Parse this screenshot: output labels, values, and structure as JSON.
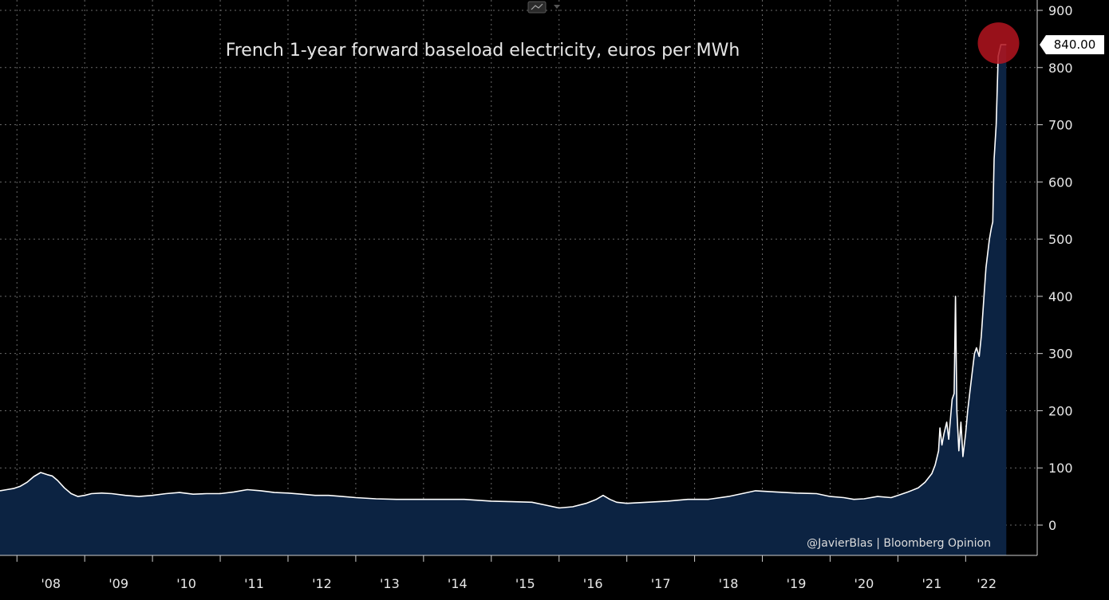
{
  "chart_data": {
    "type": "area",
    "title": "French 1-year forward baseload electricity, euros per MWh",
    "credit": "@JavierBlas | Bloomberg Opinion",
    "last_value_label": "840.00",
    "xlabel": "",
    "ylabel": "",
    "ylim": [
      -50,
      900
    ],
    "yticks": [
      0,
      100,
      200,
      300,
      400,
      500,
      600,
      700,
      800,
      900
    ],
    "xlim": [
      2007.75,
      2022.62
    ],
    "xtick_labels": [
      "'08",
      "'09",
      "'10",
      "'11",
      "'12",
      "'13",
      "'14",
      "'15",
      "'16",
      "'17",
      "'18",
      "'19",
      "'20",
      "'21",
      "'22"
    ],
    "grid": true,
    "colors": {
      "line": "#ffffff",
      "fill": "#0c2342",
      "highlight": "#b3141e",
      "background": "#000000"
    },
    "series": [
      {
        "x": [
          2007.75,
          2007.85,
          2007.95,
          2008.05,
          2008.15,
          2008.25,
          2008.35,
          2008.45,
          2008.52,
          2008.6,
          2008.7,
          2008.8,
          2008.9,
          2009.0,
          2009.1,
          2009.25,
          2009.4,
          2009.6,
          2009.8,
          2010.0,
          2010.2,
          2010.4,
          2010.6,
          2010.8,
          2011.0,
          2011.2,
          2011.4,
          2011.6,
          2011.8,
          2012.0,
          2012.2,
          2012.4,
          2012.6,
          2012.8,
          2013.0,
          2013.3,
          2013.6,
          2014.0,
          2014.3,
          2014.6,
          2015.0,
          2015.3,
          2015.6,
          2015.8,
          2016.0,
          2016.2,
          2016.4,
          2016.55,
          2016.65,
          2016.75,
          2016.85,
          2017.0,
          2017.3,
          2017.6,
          2017.9,
          2018.2,
          2018.5,
          2018.7,
          2018.9,
          2019.2,
          2019.5,
          2019.8,
          2020.0,
          2020.2,
          2020.35,
          2020.5,
          2020.7,
          2020.9,
          2021.0,
          2021.15,
          2021.3,
          2021.4,
          2021.5,
          2021.55,
          2021.6,
          2021.62,
          2021.65,
          2021.68,
          2021.72,
          2021.75,
          2021.8,
          2021.83,
          2021.85,
          2021.87,
          2021.9,
          2021.93,
          2021.96,
          2022.0,
          2022.03,
          2022.06,
          2022.1,
          2022.13,
          2022.16,
          2022.2,
          2022.23,
          2022.27,
          2022.3,
          2022.35,
          2022.38,
          2022.4,
          2022.42,
          2022.45,
          2022.48,
          2022.52,
          2022.56,
          2022.6
        ],
        "values": [
          60,
          62,
          64,
          68,
          75,
          85,
          92,
          88,
          86,
          78,
          65,
          55,
          50,
          52,
          55,
          56,
          55,
          52,
          50,
          52,
          55,
          57,
          54,
          55,
          55,
          58,
          62,
          60,
          57,
          56,
          54,
          52,
          52,
          50,
          48,
          46,
          45,
          45,
          45,
          45,
          42,
          41,
          40,
          35,
          30,
          32,
          38,
          45,
          52,
          45,
          40,
          38,
          40,
          42,
          45,
          45,
          50,
          55,
          60,
          58,
          56,
          55,
          50,
          48,
          45,
          46,
          50,
          48,
          52,
          58,
          65,
          75,
          90,
          105,
          130,
          170,
          140,
          160,
          180,
          150,
          220,
          230,
          400,
          200,
          130,
          180,
          120,
          160,
          200,
          230,
          270,
          300,
          310,
          295,
          330,
          400,
          450,
          500,
          520,
          530,
          640,
          700,
          820,
          840,
          840,
          840
        ]
      }
    ]
  }
}
